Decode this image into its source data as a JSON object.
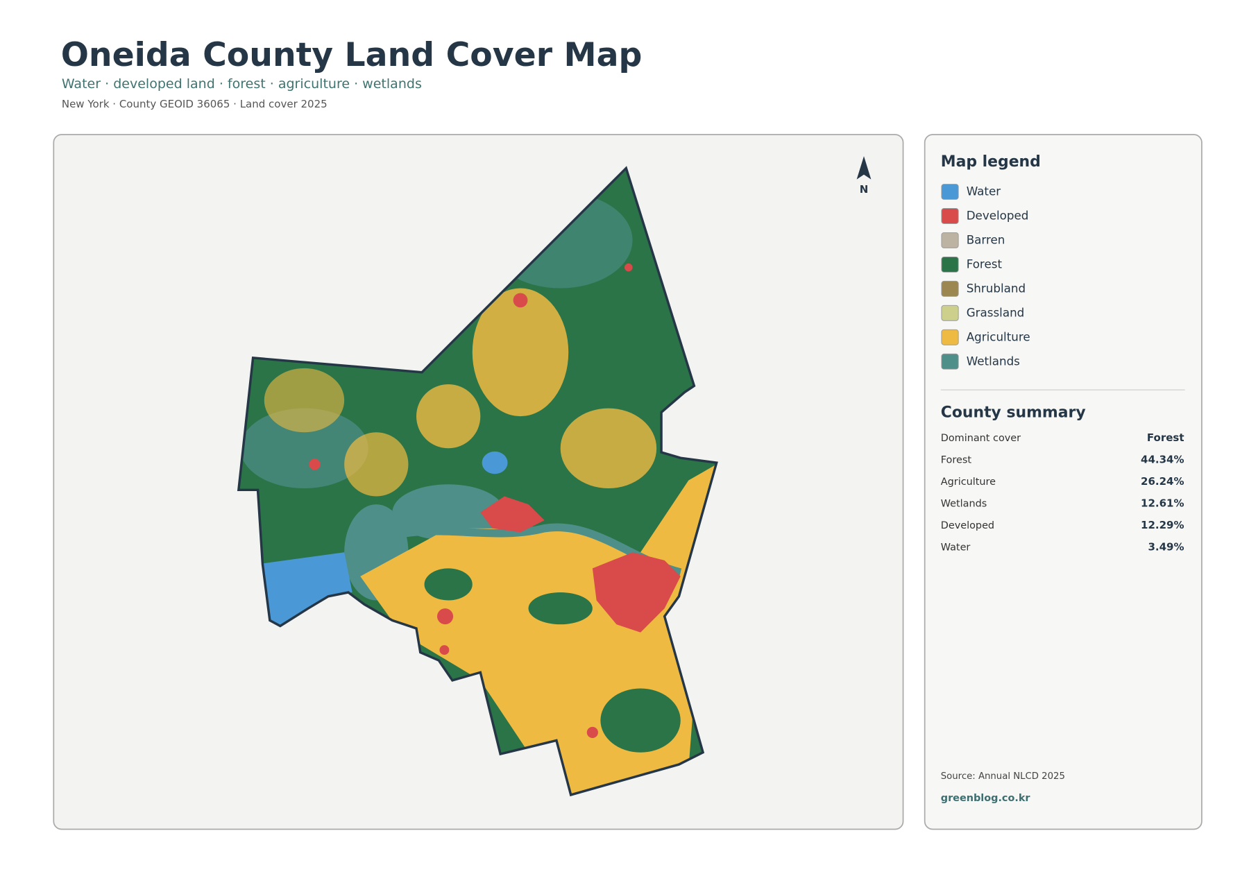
{
  "header": {
    "title": "Oneida County Land Cover Map",
    "subtitle": "Water · developed land · forest · agriculture · wetlands",
    "meta": "New York · County GEOID 36065 · Land cover 2025"
  },
  "map": {
    "north": "N"
  },
  "legend": {
    "title": "Map legend",
    "items": [
      {
        "label": "Water",
        "color": "#4a98d6"
      },
      {
        "label": "Developed",
        "color": "#d94a4a"
      },
      {
        "label": "Barren",
        "color": "#bdb3a3"
      },
      {
        "label": "Forest",
        "color": "#2a7447"
      },
      {
        "label": "Shrubland",
        "color": "#9c8750"
      },
      {
        "label": "Grassland",
        "color": "#cdd08a"
      },
      {
        "label": "Agriculture",
        "color": "#efba42"
      },
      {
        "label": "Wetlands",
        "color": "#4e8f8a"
      }
    ]
  },
  "summary": {
    "title": "County summary",
    "rows": [
      {
        "label": "Dominant cover",
        "value": "Forest"
      },
      {
        "label": "Forest",
        "value": "44.34%"
      },
      {
        "label": "Agriculture",
        "value": "26.24%"
      },
      {
        "label": "Wetlands",
        "value": "12.61%"
      },
      {
        "label": "Developed",
        "value": "12.29%"
      },
      {
        "label": "Water",
        "value": "3.49%"
      }
    ]
  },
  "footer": {
    "source": "Source: Annual NLCD 2025",
    "site": "greenblog.co.kr"
  }
}
